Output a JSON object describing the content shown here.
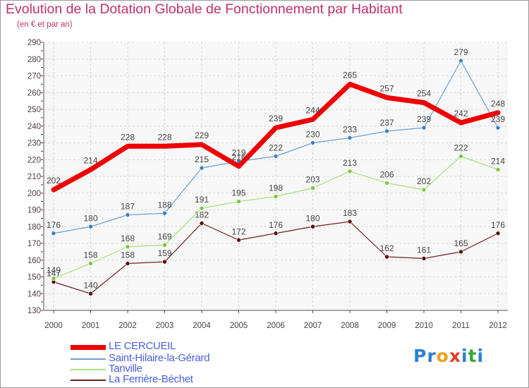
{
  "title": "Evolution de la Dotation Globale de Fonctionnement par Habitant",
  "subtitle": "(en € et par an)",
  "logo": {
    "text": "Proxiti",
    "letters": [
      "P",
      "r",
      "o",
      "x",
      "i",
      "t",
      "i"
    ],
    "colors": [
      "#2d7fd0",
      "#2d7fd0",
      "#f0a020",
      "#e0402a",
      "#2d7fd0",
      "#3aa53a",
      "#2d7fd0"
    ]
  },
  "chart_data": {
    "type": "line",
    "categories": [
      "2000",
      "2001",
      "2002",
      "2003",
      "2004",
      "2005",
      "2006",
      "2007",
      "2008",
      "2009",
      "2010",
      "2011",
      "2012"
    ],
    "ylim": [
      130,
      290
    ],
    "yticks": [
      "130",
      "140",
      "150",
      "160",
      "170",
      "180",
      "190",
      "200",
      "210",
      "220",
      "230",
      "240",
      "250",
      "260",
      "270",
      "280",
      "290"
    ],
    "grid": true,
    "legend_position": "bottom-left",
    "series": [
      {
        "name": "La Ferrière-Béchet",
        "color": "#6a1f1f",
        "marker": "#5a1010",
        "width": 1.2,
        "values": [
          147,
          140,
          158,
          159,
          182,
          172,
          176,
          180,
          183,
          162,
          161,
          165,
          176
        ],
        "labels": [
          "147",
          "140",
          "158",
          "159",
          "182",
          "172",
          "176",
          "180",
          "183",
          "162",
          "161",
          "165",
          "176"
        ]
      },
      {
        "name": "Tanville",
        "color": "#a8e07a",
        "marker": "#7cc83c",
        "width": 1.2,
        "values": [
          149,
          158,
          168,
          169,
          191,
          195,
          198,
          203,
          213,
          206,
          202,
          222,
          214
        ],
        "labels": [
          "149",
          "158",
          "168",
          "169",
          "191",
          "195",
          "198",
          "203",
          "213",
          "206",
          "202",
          "222",
          "214"
        ]
      },
      {
        "name": "Saint-Hilaire-la-Gérard",
        "color": "#6a9fd0",
        "marker": "#3a7fc8",
        "width": 1.2,
        "values": [
          176,
          180,
          187,
          188,
          215,
          219,
          222,
          230,
          233,
          237,
          239,
          279,
          239
        ],
        "labels": [
          "176",
          "180",
          "187",
          "188",
          "215",
          "219",
          "222",
          "230",
          "233",
          "237",
          "239",
          "279",
          "239"
        ]
      },
      {
        "name": "LE CERCUEIL",
        "color": "#ee0000",
        "marker": "#ee0000",
        "width": 7,
        "values": [
          202,
          214,
          228,
          228,
          229,
          216,
          239,
          244,
          265,
          257,
          254,
          242,
          248
        ],
        "labels": [
          "202",
          "214",
          "228",
          "228",
          "229",
          "216",
          "239",
          "244",
          "265",
          "257",
          "254",
          "242",
          "248"
        ]
      }
    ]
  },
  "legend": [
    {
      "name": "LE CERCUEIL",
      "color": "#ee0000",
      "width": 7
    },
    {
      "name": "Saint-Hilaire-la-Gérard",
      "color": "#6a9fd0",
      "width": 1.5
    },
    {
      "name": "Tanville",
      "color": "#a8e07a",
      "width": 1.5
    },
    {
      "name": "La Ferrière-Béchet",
      "color": "#6a1f1f",
      "width": 1.5
    }
  ]
}
